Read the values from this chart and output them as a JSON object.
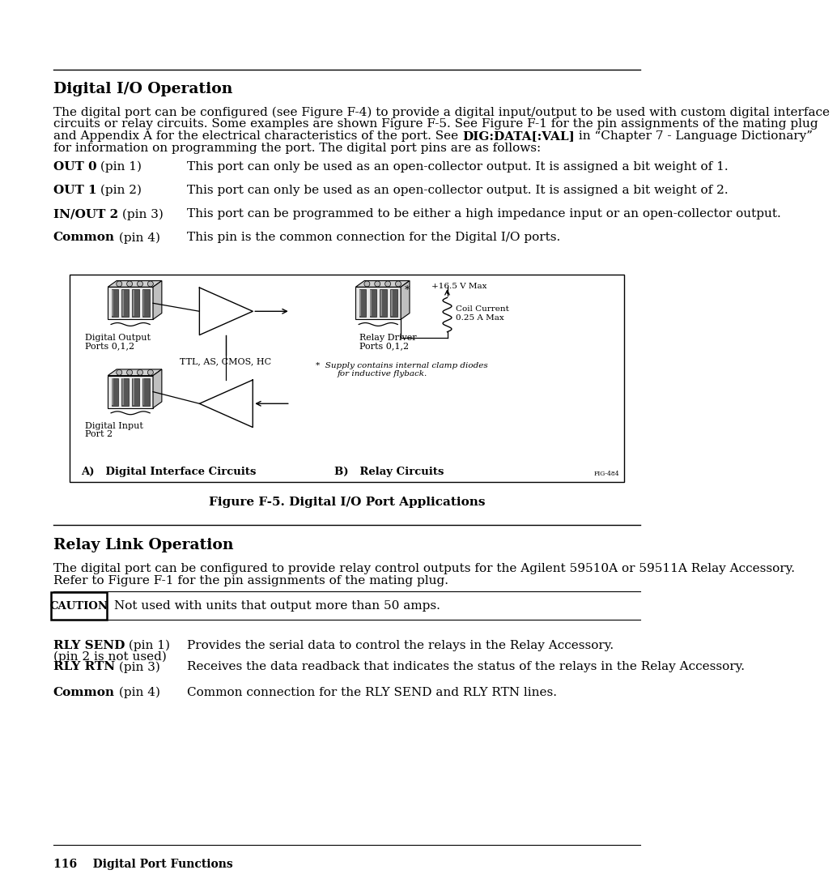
{
  "page_title": "Digital I/O Operation",
  "section2_title": "Relay Link Operation",
  "bg_color": "#ffffff",
  "text_color": "#000000",
  "intro_line1": "The digital port can be configured (see Figure F-4) to provide a digital input/output to be used with custom digital interface",
  "intro_line2": "circuits or relay circuits. Some examples are shown Figure F-5. See Figure F-1 for the pin assignments of the mating plug",
  "intro_line3_pre": "and Appendix A for the electrical characteristics of the port. See ",
  "intro_line3_bold": "DIG:DATA[:VAL]",
  "intro_line3_post": " in “Chapter 7 - Language Dictionary”",
  "intro_line4": "for information on programming the port. The digital port pins are as follows:",
  "pin_items": [
    {
      "label_bold": "OUT 0",
      "label_normal": " (pin 1)         ",
      "description": "This port can only be used as an open-collector output. It is assigned a bit weight of 1."
    },
    {
      "label_bold": "OUT 1",
      "label_normal": " (pin 2)         ",
      "description": "This port can only be used as an open-collector output. It is assigned a bit weight of 2."
    },
    {
      "label_bold": "IN/OUT 2",
      "label_normal": " (pin 3)      ",
      "description": "This port can be programmed to be either a high impedance input or an open-collector output."
    },
    {
      "label_bold": "Common",
      "label_normal": " (pin 4)       ",
      "description": "This pin is the common connection for the Digital I/O ports."
    }
  ],
  "figure_caption": "Figure F-5. Digital I/O Port Applications",
  "section2_intro_line1": "The digital port can be configured to provide relay control outputs for the Agilent 59510A or 59511A Relay Accessory.",
  "section2_intro_line2": "Refer to Figure F-1 for the pin assignments of the mating plug.",
  "caution_text": "Not used with units that output more than 50 amps.",
  "relay_items": [
    {
      "label_bold": "RLY SEND",
      "label_normal": " (pin 1)",
      "description": "Provides the serial data to control the relays in the Relay Accessory.",
      "extra_line": "(pin 2 is not used)"
    },
    {
      "label_bold": "RLY RTN",
      "label_normal": " (pin 3)",
      "description": "Receives the data readback that indicates the status of the relays in the Relay Accessory.",
      "extra_line": null
    },
    {
      "label_bold": "Common",
      "label_normal": " (pin 4)",
      "description": "Common connection for the RLY SEND and RLY RTN lines.",
      "extra_line": null
    }
  ],
  "footer_text": "116    Digital Port Functions"
}
